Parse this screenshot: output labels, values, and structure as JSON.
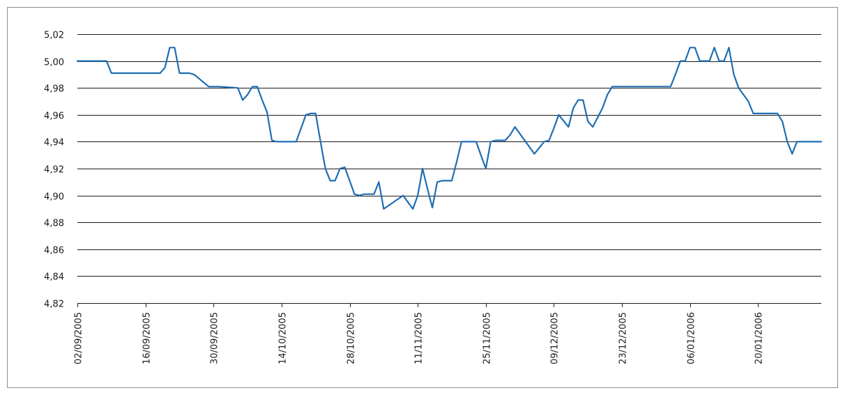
{
  "chart_data": {
    "type": "line",
    "title": "",
    "xlabel": "",
    "ylabel": "",
    "ylim": [
      4.82,
      5.02
    ],
    "y_ticks": [
      "4,82",
      "4,84",
      "4,86",
      "4,88",
      "4,90",
      "4,92",
      "4,94",
      "4,96",
      "4,98",
      "5,00",
      "5,02"
    ],
    "x_range": [
      "02/09/2005",
      "02/02/2006"
    ],
    "x_ticks": [
      "02/09/2005",
      "16/09/2005",
      "30/09/2005",
      "14/10/2005",
      "28/10/2005",
      "11/11/2005",
      "25/11/2005",
      "09/12/2005",
      "23/12/2005",
      "06/01/2006",
      "20/01/2006"
    ],
    "grid": "horizontal",
    "legend": "none",
    "line_color": "#1f6db3",
    "series": [
      {
        "x": [
          "02/09/2005",
          "08/09/2005",
          "09/09/2005",
          "10/09/2005",
          "19/09/2005",
          "20/09/2005",
          "21/09/2005",
          "22/09/2005",
          "23/09/2005",
          "24/09/2005",
          "25/09/2005",
          "26/09/2005",
          "29/09/2005",
          "30/09/2005",
          "01/10/2005",
          "05/10/2005",
          "06/10/2005",
          "07/10/2005",
          "08/10/2005",
          "09/10/2005",
          "10/10/2005",
          "11/10/2005",
          "12/10/2005",
          "13/10/2005",
          "14/10/2005",
          "17/10/2005",
          "18/10/2005",
          "19/10/2005",
          "20/10/2005",
          "21/10/2005",
          "22/10/2005",
          "23/10/2005",
          "24/10/2005",
          "25/10/2005",
          "26/10/2005",
          "27/10/2005",
          "28/10/2005",
          "29/10/2005",
          "30/10/2005",
          "31/10/2005",
          "01/11/2005",
          "02/11/2005",
          "03/11/2005",
          "04/11/2005",
          "08/11/2005",
          "09/11/2005",
          "10/11/2005",
          "11/11/2005",
          "12/11/2005",
          "13/11/2005",
          "14/11/2005",
          "15/11/2005",
          "16/11/2005",
          "17/11/2005",
          "18/11/2005",
          "19/11/2005",
          "20/11/2005",
          "23/11/2005",
          "24/11/2005",
          "25/11/2005",
          "26/11/2005",
          "27/11/2005",
          "28/11/2005",
          "29/11/2005",
          "30/11/2005",
          "01/12/2005",
          "05/12/2005",
          "07/12/2005",
          "08/12/2005",
          "09/12/2005",
          "10/12/2005",
          "12/12/2005",
          "13/12/2005",
          "14/12/2005",
          "15/12/2005",
          "16/12/2005",
          "17/12/2005",
          "19/12/2005",
          "20/12/2005",
          "21/12/2005",
          "22/12/2005",
          "23/12/2005",
          "24/12/2005",
          "02/01/2006",
          "03/01/2006",
          "04/01/2006",
          "05/01/2006",
          "06/01/2006",
          "07/01/2006",
          "08/01/2006",
          "10/01/2006",
          "11/01/2006",
          "12/01/2006",
          "13/01/2006",
          "14/01/2006",
          "15/01/2006",
          "16/01/2006",
          "18/01/2006",
          "19/01/2006",
          "20/01/2006",
          "24/01/2006",
          "25/01/2006",
          "26/01/2006",
          "27/01/2006",
          "28/01/2006",
          "02/02/2006"
        ],
        "values": [
          5.0,
          5.0,
          4.991,
          4.991,
          4.991,
          4.995,
          5.01,
          5.01,
          4.991,
          4.991,
          4.991,
          4.99,
          4.981,
          4.981,
          4.981,
          4.98,
          4.971,
          4.975,
          4.981,
          4.981,
          4.971,
          4.962,
          4.941,
          4.94,
          4.94,
          4.94,
          4.95,
          4.96,
          4.961,
          4.961,
          4.94,
          4.92,
          4.911,
          4.911,
          4.92,
          4.921,
          4.911,
          4.901,
          4.9,
          4.901,
          4.901,
          4.901,
          4.91,
          4.89,
          4.9,
          4.895,
          4.89,
          4.9,
          4.92,
          4.905,
          4.891,
          4.91,
          4.911,
          4.911,
          4.911,
          4.925,
          4.94,
          4.94,
          4.93,
          4.92,
          4.94,
          4.941,
          4.941,
          4.941,
          4.945,
          4.951,
          4.931,
          4.94,
          4.941,
          4.95,
          4.96,
          4.951,
          4.965,
          4.971,
          4.971,
          4.955,
          4.951,
          4.965,
          4.975,
          4.981,
          4.981,
          4.981,
          4.981,
          4.981,
          4.99,
          5.0,
          5.0,
          5.01,
          5.01,
          5.0,
          5.0,
          5.01,
          5.0,
          5.0,
          5.01,
          4.99,
          4.98,
          4.97,
          4.961,
          4.961,
          4.961,
          4.955,
          4.94,
          4.931,
          4.94,
          4.94
        ]
      }
    ]
  }
}
